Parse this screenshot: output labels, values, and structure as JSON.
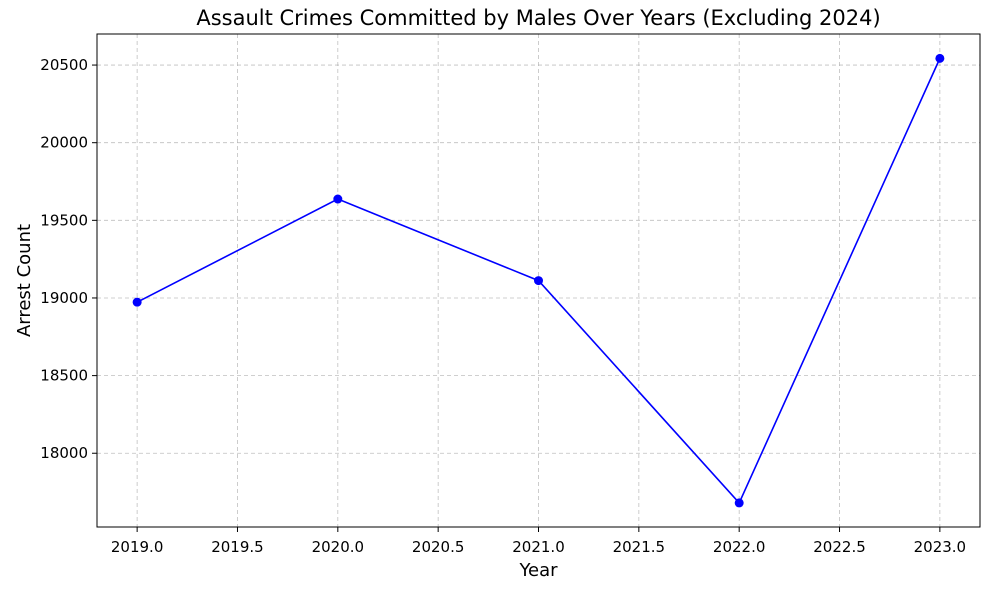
{
  "chart_data": {
    "type": "line",
    "title": "Assault Crimes Committed by Males Over Years (Excluding 2024)",
    "xlabel": "Year",
    "ylabel": "Arrest Count",
    "x": [
      2019,
      2020,
      2021,
      2022,
      2023
    ],
    "series": [
      {
        "values": [
          18973,
          19637,
          19112,
          17680,
          20543
        ],
        "color": "#0000ff",
        "marker": "circle"
      }
    ],
    "xlim": [
      2018.8,
      2023.2
    ],
    "ylim": [
      17525,
      20700
    ],
    "xticks": [
      "2019.0",
      "2019.5",
      "2020.0",
      "2020.5",
      "2021.0",
      "2021.5",
      "2022.0",
      "2022.5",
      "2023.0"
    ],
    "yticks": [
      "18000",
      "18500",
      "19000",
      "19500",
      "20000",
      "20500"
    ],
    "grid": true,
    "grid_style": "dashed",
    "legend": false
  }
}
